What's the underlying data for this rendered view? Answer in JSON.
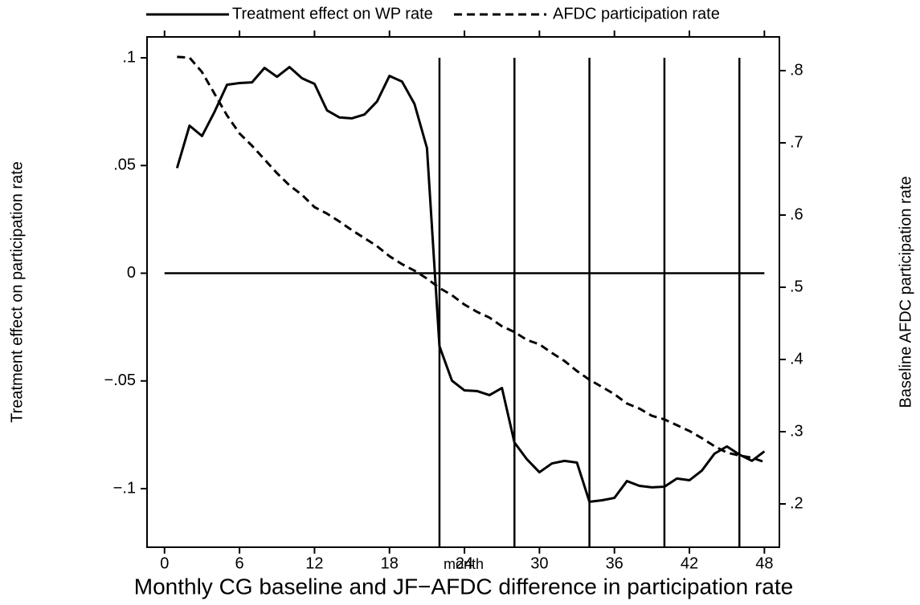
{
  "chart_data": {
    "type": "line",
    "title": "Monthly CG baseline and JF−AFDC difference in participation rate",
    "x_label": "month",
    "y_label": "Treatment effect on participation rate",
    "y2_label": "Baseline AFDC participation rate",
    "x": [
      1,
      2,
      3,
      4,
      5,
      6,
      7,
      8,
      9,
      10,
      11,
      12,
      13,
      14,
      15,
      16,
      17,
      18,
      19,
      20,
      21,
      22,
      23,
      24,
      25,
      26,
      27,
      28,
      29,
      30,
      31,
      32,
      33,
      34,
      35,
      36,
      37,
      38,
      39,
      40,
      41,
      42,
      43,
      44,
      45,
      46,
      47,
      48
    ],
    "series": [
      {
        "name": "Treatment effect on WP rate",
        "color": "#000000",
        "style": "solid",
        "axis": "y",
        "values": [
          0.0488,
          0.0685,
          0.0637,
          0.0749,
          0.0875,
          0.0883,
          0.0886,
          0.0953,
          0.0912,
          0.0957,
          0.0905,
          0.0879,
          0.0756,
          0.0723,
          0.0719,
          0.0737,
          0.0797,
          0.0916,
          0.089,
          0.0786,
          0.0581,
          -0.0339,
          -0.0499,
          -0.0544,
          -0.0547,
          -0.0566,
          -0.0533,
          -0.0786,
          -0.0864,
          -0.0924,
          -0.0883,
          -0.0871,
          -0.0879,
          -0.1061,
          -0.1054,
          -0.1043,
          -0.0965,
          -0.0987,
          -0.0994,
          -0.0991,
          -0.0953,
          -0.0961,
          -0.0916,
          -0.0838,
          -0.0804,
          -0.0842,
          -0.0871,
          -0.0827
        ]
      },
      {
        "name": "AFDC participation rate",
        "color": "#000000",
        "style": "dashed",
        "axis": "y2",
        "values": [
          0.819,
          0.818,
          0.798,
          0.768,
          0.738,
          0.713,
          0.696,
          0.677,
          0.658,
          0.641,
          0.628,
          0.611,
          0.602,
          0.591,
          0.579,
          0.568,
          0.557,
          0.543,
          0.532,
          0.523,
          0.512,
          0.499,
          0.489,
          0.476,
          0.466,
          0.458,
          0.446,
          0.438,
          0.427,
          0.421,
          0.409,
          0.398,
          0.384,
          0.372,
          0.362,
          0.352,
          0.339,
          0.332,
          0.322,
          0.317,
          0.309,
          0.301,
          0.291,
          0.28,
          0.271,
          0.267,
          0.264,
          0.258
        ]
      }
    ],
    "hline": 0,
    "vlines": [
      22,
      28,
      34,
      40,
      46
    ],
    "xlim": [
      -1.4,
      49.2
    ],
    "xticks": [
      0,
      6,
      12,
      18,
      24,
      30,
      36,
      42,
      48
    ],
    "ylim": [
      -0.1272,
      0.1097
    ],
    "yticks": [
      {
        "value": -0.1,
        "label": "−.1"
      },
      {
        "value": -0.05,
        "label": "−.05"
      },
      0,
      {
        "value": 0.05,
        "label": ".05"
      },
      {
        "value": 0.1,
        "label": ".1"
      }
    ],
    "y2lim": [
      0.14,
      0.8467
    ],
    "y2ticks": [
      {
        "value": 0.2,
        "label": ".2"
      },
      {
        "value": 0.3,
        "label": ".3"
      },
      {
        "value": 0.4,
        "label": ".4"
      },
      {
        "value": 0.5,
        "label": ".5"
      },
      {
        "value": 0.6,
        "label": ".6"
      },
      {
        "value": 0.7,
        "label": ".7"
      },
      {
        "value": 0.8,
        "label": ".8"
      }
    ]
  }
}
